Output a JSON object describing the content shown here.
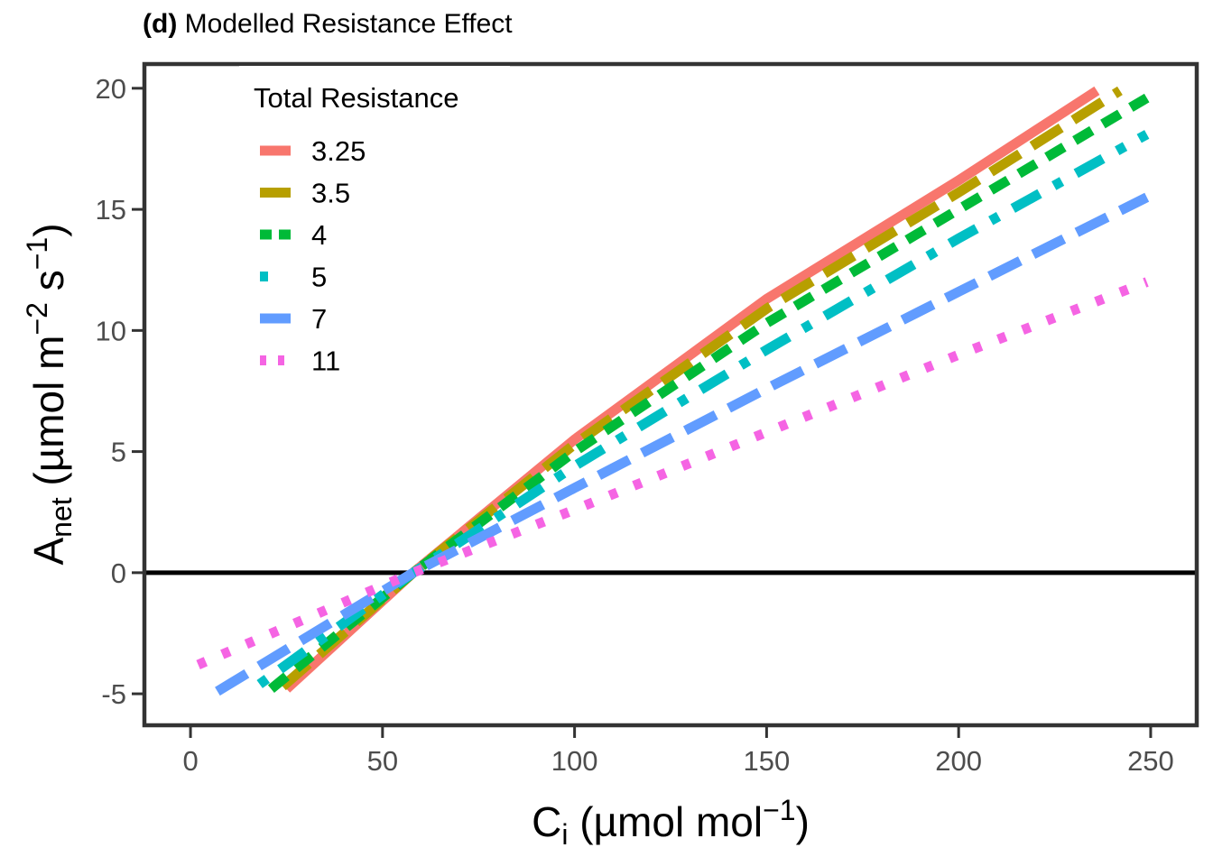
{
  "panel": {
    "tag": "(d)",
    "title": "Modelled Resistance Effect"
  },
  "chart_data": {
    "type": "line",
    "xlabel": {
      "main": "C",
      "sub": "i",
      "unit": "(µmol mol",
      "sup": "−1",
      "close": ")"
    },
    "ylabel": {
      "main": "A",
      "sub": "net",
      "unit": "(µmol m",
      "sup1": "−2",
      "mid": " s",
      "sup2": "−1",
      "close": ")"
    },
    "xlim": [
      -12,
      262
    ],
    "ylim": [
      -6.3,
      21.0
    ],
    "xticks": [
      0,
      50,
      100,
      150,
      200,
      250
    ],
    "yticks": [
      -5,
      0,
      5,
      10,
      15,
      20
    ],
    "xtick_labels": [
      "0",
      "50",
      "100",
      "150",
      "200",
      "250"
    ],
    "ytick_labels": [
      "-5",
      "0",
      "5",
      "10",
      "15",
      "20"
    ],
    "reference_line": {
      "y": 0,
      "color": "#000000"
    },
    "grid": false,
    "legend": {
      "title": "Total Resistance",
      "position": "top-left"
    },
    "series": [
      {
        "name": "3.25",
        "color": "#F8766D",
        "linestyle": "solid",
        "x": [
          25,
          58,
          100,
          150,
          200,
          236
        ],
        "y": [
          -4.8,
          0,
          5.5,
          11.3,
          16.2,
          19.9
        ]
      },
      {
        "name": "3.5",
        "color": "#B79F00",
        "linestyle": "longdash",
        "x": [
          24,
          58,
          100,
          150,
          200,
          242
        ],
        "y": [
          -4.7,
          0,
          5.3,
          10.9,
          15.7,
          19.9
        ]
      },
      {
        "name": "4",
        "color": "#00BA38",
        "linestyle": "dashed",
        "x": [
          21,
          58,
          100,
          150,
          200,
          249
        ],
        "y": [
          -4.8,
          0,
          5.0,
          10.3,
          15.0,
          19.6
        ]
      },
      {
        "name": "5",
        "color": "#00BFC4",
        "linestyle": "dotdash",
        "x": [
          18,
          58,
          100,
          150,
          200,
          249
        ],
        "y": [
          -4.6,
          0,
          4.4,
          9.2,
          13.8,
          18.1
        ]
      },
      {
        "name": "7",
        "color": "#619CFF",
        "linestyle": "longdash",
        "x": [
          7,
          58,
          100,
          150,
          200,
          249
        ],
        "y": [
          -4.9,
          0,
          3.5,
          7.6,
          11.6,
          15.5
        ]
      },
      {
        "name": "11",
        "color": "#F564E3",
        "linestyle": "dotted",
        "x": [
          2,
          58,
          100,
          150,
          200,
          249
        ],
        "y": [
          -3.8,
          0,
          2.6,
          5.8,
          9.0,
          12.0
        ]
      }
    ]
  }
}
